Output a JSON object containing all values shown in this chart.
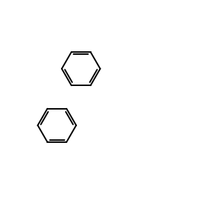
{
  "bg": "#ffffff",
  "black": "#000000",
  "red": "#ff0000",
  "blue": "#0000ff",
  "lw": 1.5,
  "lw2": 1.2
}
